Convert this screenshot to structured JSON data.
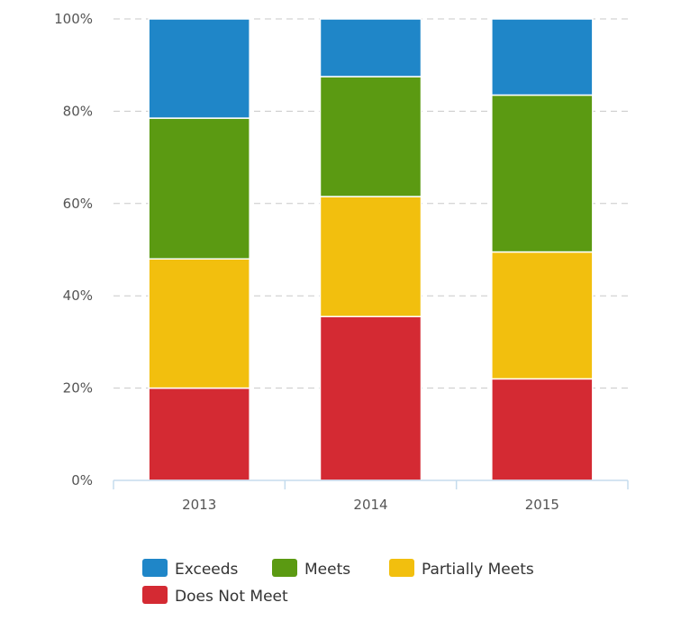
{
  "chart_data": {
    "type": "bar",
    "stacked": true,
    "percent": true,
    "categories": [
      "2013",
      "2014",
      "2015"
    ],
    "series": [
      {
        "name": "Does Not Meet",
        "color": "#d42a33",
        "values": [
          20,
          35.5,
          22
        ]
      },
      {
        "name": "Partially Meets",
        "color": "#f2bf0e",
        "values": [
          28,
          26,
          27.5
        ]
      },
      {
        "name": "Meets",
        "color": "#5b9a12",
        "values": [
          30.5,
          26,
          34
        ]
      },
      {
        "name": "Exceeds",
        "color": "#1f86c8",
        "values": [
          21.5,
          12.5,
          16.5
        ]
      }
    ],
    "ylim": [
      0,
      100
    ],
    "yticks": [
      "0%",
      "20%",
      "40%",
      "60%",
      "80%",
      "100%"
    ],
    "grid": true,
    "legend_position": "bottom",
    "legend_order": [
      "Exceeds",
      "Meets",
      "Partially Meets",
      "Does Not Meet"
    ]
  }
}
